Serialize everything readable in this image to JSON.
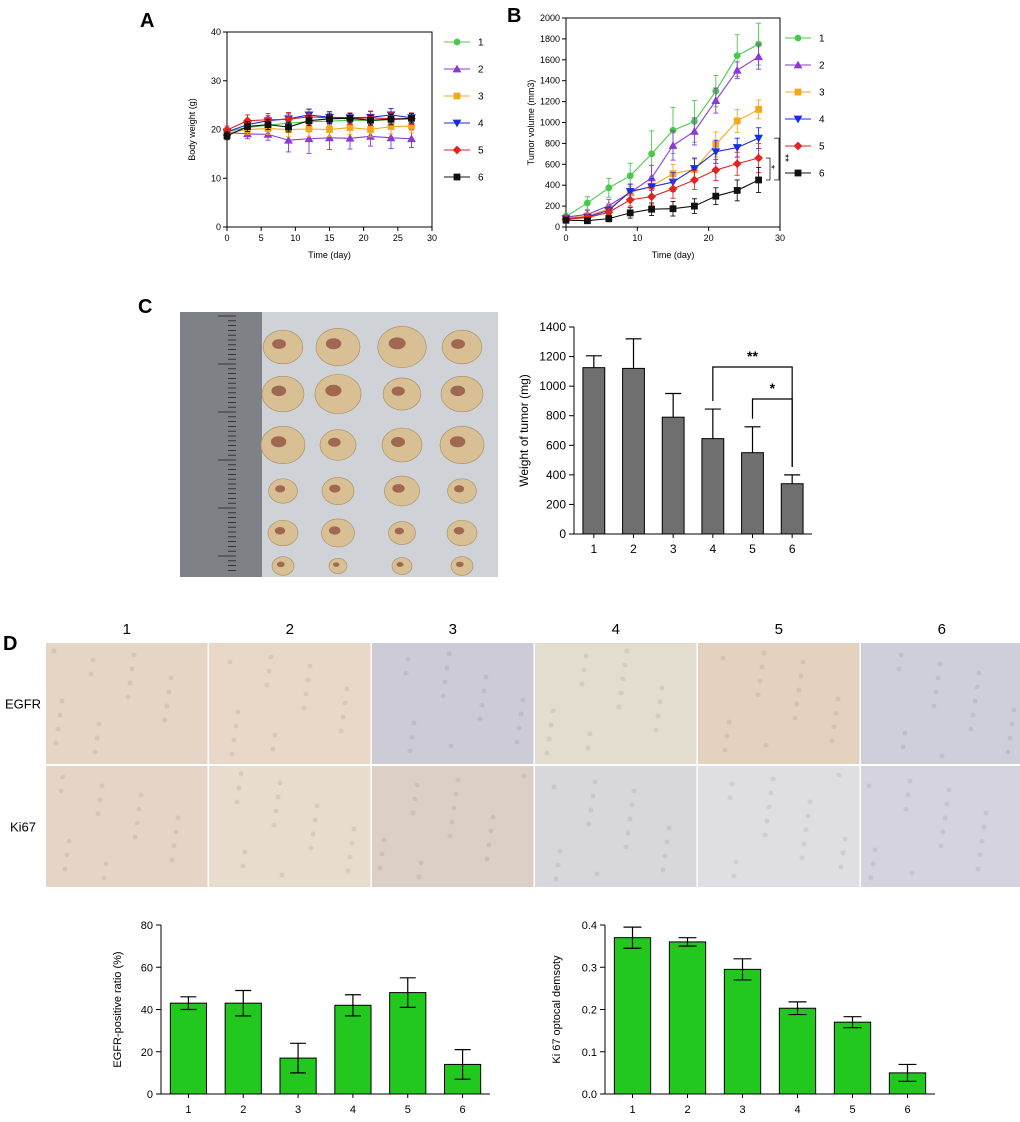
{
  "colors": {
    "s1": "#49c94a",
    "s2": "#8b3ad6",
    "s3": "#f4a71c",
    "s4": "#1b2be3",
    "s5": "#e22323",
    "s6": "#111111",
    "bar_gray": "#6f6f6f",
    "bar_green": "#22c81e"
  },
  "panels": {
    "a": "A",
    "b": "B",
    "c": "C",
    "d": "D"
  },
  "ihc": {
    "columns": [
      "1",
      "2",
      "3",
      "4",
      "5",
      "6"
    ],
    "rows": [
      "EGFR",
      "Ki67"
    ],
    "tones": [
      [
        "#e6d4c4",
        "#e9d8c8",
        "#cdcbd6",
        "#e3ddcf",
        "#e4d2bf",
        "#cfcedb"
      ],
      [
        "#e5d5c6",
        "#e7dccd",
        "#dccfc6",
        "#d8d7dc",
        "#dfdee2",
        "#d5d3de"
      ]
    ]
  },
  "chart_data": [
    {
      "id": "A",
      "type": "line",
      "xlabel": "Time (day)",
      "ylabel": "Body weight (g)",
      "xlim": [
        0,
        30
      ],
      "ylim": [
        0,
        40
      ],
      "xticks": [
        "0",
        "5",
        "10",
        "15",
        "20",
        "25",
        "30"
      ],
      "yticks": [
        "0",
        "10",
        "20",
        "30",
        "40"
      ],
      "x": [
        0,
        3,
        6,
        9,
        12,
        15,
        18,
        21,
        24,
        27
      ],
      "legend_position": "right",
      "series": [
        {
          "name": "1",
          "marker": "circle",
          "values": [
            19.6,
            20.4,
            20.9,
            21.3,
            21.6,
            21.7,
            21.9,
            21.8,
            22.0,
            22.2
          ],
          "err": [
            0.8,
            1.0,
            1.0,
            1.0,
            1.0,
            1.0,
            1.0,
            1.0,
            1.0,
            1.0
          ]
        },
        {
          "name": "2",
          "marker": "triangle-up",
          "values": [
            19.4,
            19.1,
            19.0,
            17.8,
            18.1,
            18.3,
            18.2,
            18.6,
            18.3,
            18.1
          ],
          "err": [
            0.8,
            1.0,
            1.2,
            2.4,
            3.0,
            2.4,
            2.2,
            2.0,
            2.2,
            1.8
          ]
        },
        {
          "name": "3",
          "marker": "square",
          "values": [
            19.3,
            20.0,
            20.2,
            20.0,
            20.1,
            20.0,
            20.4,
            20.0,
            20.6,
            20.7
          ],
          "err": [
            0.8,
            1.0,
            1.2,
            1.5,
            1.6,
            1.4,
            1.4,
            1.5,
            1.5,
            1.4
          ]
        },
        {
          "name": "4",
          "marker": "triangle-down",
          "values": [
            19.5,
            21.0,
            21.8,
            22.2,
            23.0,
            22.5,
            22.4,
            22.5,
            23.0,
            22.4
          ],
          "err": [
            0.8,
            1.0,
            1.0,
            1.0,
            1.2,
            1.1,
            1.0,
            1.2,
            1.3,
            1.0
          ]
        },
        {
          "name": "5",
          "marker": "diamond",
          "values": [
            19.9,
            21.8,
            22.0,
            22.1,
            22.6,
            22.4,
            22.2,
            22.4,
            22.2,
            22.2
          ],
          "err": [
            0.8,
            1.2,
            1.3,
            1.4,
            1.5,
            1.3,
            1.2,
            1.4,
            1.3,
            1.2
          ]
        },
        {
          "name": "6",
          "marker": "square-filled",
          "values": [
            18.7,
            20.6,
            21.0,
            20.5,
            21.8,
            22.2,
            22.3,
            21.9,
            22.1,
            22.3
          ],
          "err": [
            0.8,
            1.0,
            1.0,
            1.0,
            1.0,
            1.0,
            1.0,
            1.0,
            1.0,
            1.0
          ]
        }
      ]
    },
    {
      "id": "B",
      "type": "line",
      "xlabel": "Time (day)",
      "ylabel": "Tumor volume (mm3)",
      "xlim": [
        0,
        30
      ],
      "ylim": [
        0,
        2000
      ],
      "xticks": [
        "0",
        "10",
        "20",
        "30"
      ],
      "yticks": [
        "0",
        "200",
        "400",
        "600",
        "800",
        "1000",
        "1200",
        "1400",
        "1600",
        "1800",
        "2000"
      ],
      "x": [
        0,
        3,
        6,
        9,
        12,
        15,
        18,
        21,
        24,
        27
      ],
      "legend_position": "right",
      "annotations": [
        "*",
        "**"
      ],
      "series": [
        {
          "name": "1",
          "marker": "circle",
          "values": [
            100,
            230,
            375,
            490,
            700,
            925,
            1010,
            1300,
            1640,
            1750
          ],
          "err": [
            30,
            60,
            90,
            120,
            220,
            220,
            200,
            150,
            200,
            200
          ]
        },
        {
          "name": "2",
          "marker": "triangle-up",
          "values": [
            95,
            120,
            205,
            330,
            470,
            780,
            915,
            1210,
            1500,
            1630
          ],
          "err": [
            20,
            40,
            60,
            80,
            120,
            140,
            130,
            120,
            80,
            120
          ]
        },
        {
          "name": "3",
          "marker": "square",
          "values": [
            85,
            105,
            175,
            330,
            390,
            510,
            550,
            790,
            1015,
            1125
          ],
          "err": [
            20,
            30,
            50,
            60,
            80,
            90,
            100,
            120,
            110,
            90
          ]
        },
        {
          "name": "4",
          "marker": "triangle-down",
          "values": [
            80,
            95,
            160,
            340,
            385,
            430,
            560,
            720,
            760,
            850
          ],
          "err": [
            20,
            30,
            40,
            70,
            80,
            90,
            100,
            110,
            90,
            100
          ]
        },
        {
          "name": "5",
          "marker": "diamond",
          "values": [
            75,
            90,
            140,
            260,
            290,
            365,
            450,
            545,
            605,
            660
          ],
          "err": [
            15,
            25,
            40,
            60,
            80,
            90,
            90,
            100,
            110,
            140
          ]
        },
        {
          "name": "6",
          "marker": "square-filled",
          "values": [
            65,
            60,
            80,
            135,
            170,
            175,
            200,
            295,
            350,
            450
          ],
          "err": [
            15,
            20,
            30,
            50,
            60,
            70,
            70,
            80,
            100,
            120
          ]
        }
      ]
    },
    {
      "id": "C",
      "type": "bar",
      "categories": [
        "1",
        "2",
        "3",
        "4",
        "5",
        "6"
      ],
      "values": [
        1125,
        1120,
        790,
        645,
        550,
        340
      ],
      "errors": [
        80,
        200,
        160,
        200,
        175,
        60
      ],
      "ylabel": "Weight of tumor (mg)",
      "ylim": [
        0,
        1400
      ],
      "yticks": [
        "0",
        "200",
        "400",
        "600",
        "800",
        "1000",
        "1200",
        "1400"
      ],
      "significance": [
        {
          "from": "4",
          "to": "6",
          "label": "**"
        },
        {
          "from": "5",
          "to": "6",
          "label": "*"
        }
      ]
    },
    {
      "id": "D-EGFR",
      "type": "bar",
      "categories": [
        "1",
        "2",
        "3",
        "4",
        "5",
        "6"
      ],
      "values": [
        43,
        43,
        17,
        42,
        48,
        14
      ],
      "errors": [
        3,
        6,
        7,
        5,
        7,
        7
      ],
      "ylabel": "EGFR-positive ratio (%)",
      "ylim": [
        0,
        80
      ],
      "yticks": [
        "0",
        "20",
        "40",
        "60",
        "80"
      ]
    },
    {
      "id": "D-Ki67",
      "type": "bar",
      "categories": [
        "1",
        "2",
        "3",
        "4",
        "5",
        "6"
      ],
      "values": [
        0.37,
        0.36,
        0.295,
        0.203,
        0.17,
        0.05
      ],
      "errors": [
        0.025,
        0.01,
        0.025,
        0.015,
        0.013,
        0.02
      ],
      "ylabel": "Ki 67 optocal demsoty",
      "ylim": [
        0,
        0.4
      ],
      "yticks": [
        "0.0",
        "0.1",
        "0.2",
        "0.3",
        "0.4"
      ]
    }
  ]
}
